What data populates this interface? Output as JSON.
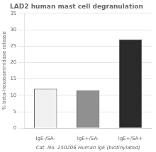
{
  "chart_data": {
    "type": "bar",
    "title": "LAD2 human mast cell degranulation",
    "categories": [
      "IgE-/SA-",
      "IgE+/SA-",
      "IgE+/SA+"
    ],
    "values": [
      12.0,
      11.5,
      27.0
    ],
    "colors": [
      "#f0f0f0",
      "#909090",
      "#2a2a2a"
    ],
    "xlabel": "Cat. No. 250206 Human IgE (biotinylated)",
    "ylabel": "% beta-hexosaminidase release",
    "ylim": [
      0,
      35
    ],
    "yticks": [
      0,
      5,
      10,
      15,
      20,
      25,
      30,
      35
    ],
    "grid": true
  }
}
